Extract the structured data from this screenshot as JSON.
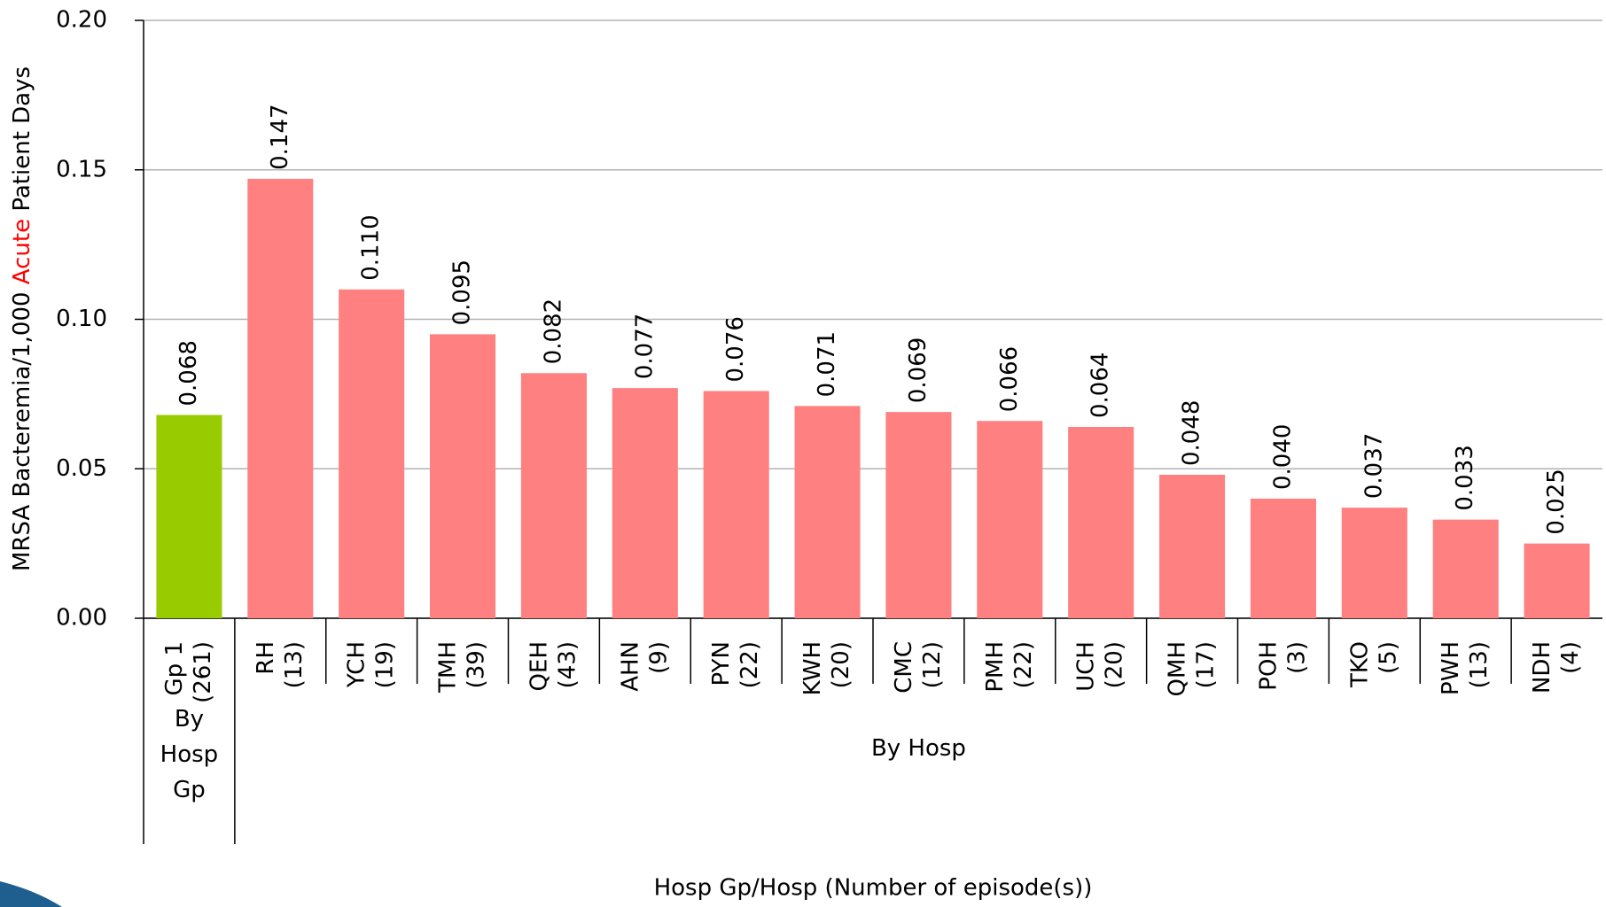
{
  "chart_data": {
    "type": "bar",
    "ylabel": [
      "MRSA Bacteremia/1,000 ",
      "Acute",
      " Patient Days"
    ],
    "xlabel": "Hosp Gp/Hosp (Number of episode(s))",
    "ylim": [
      0,
      0.2
    ],
    "yticks": [
      {
        "value": 0,
        "label": "0.00"
      },
      {
        "value": 0.05,
        "label": "0.05"
      },
      {
        "value": 0.1,
        "label": "0.10"
      },
      {
        "value": 0.15,
        "label": "0.15"
      },
      {
        "value": 0.2,
        "label": "0.20"
      }
    ],
    "grid": true,
    "groups": [
      {
        "label": "By Hosp Gp",
        "color": "#99cc00",
        "categories": [
          "Gp 1"
        ],
        "episodes": [
          "(261)"
        ],
        "values": [
          0.068
        ],
        "value_labels": [
          "0.068"
        ]
      },
      {
        "label": "By Hosp",
        "color": "#ff8080",
        "categories": [
          "RH",
          "YCH",
          "TMH",
          "QEH",
          "AHN",
          "PYN",
          "KWH",
          "CMC",
          "PMH",
          "UCH",
          "QMH",
          "POH",
          "TKO",
          "PWH",
          "NDH"
        ],
        "episodes": [
          "(13)",
          "(19)",
          "(39)",
          "(43)",
          "(9)",
          "(22)",
          "(20)",
          "(12)",
          "(22)",
          "(20)",
          "(17)",
          "(3)",
          "(5)",
          "(13)",
          "(4)"
        ],
        "values": [
          0.147,
          0.11,
          0.095,
          0.082,
          0.077,
          0.076,
          0.071,
          0.069,
          0.066,
          0.064,
          0.048,
          0.04,
          0.037,
          0.033,
          0.025
        ],
        "value_labels": [
          "0.147",
          "0.110",
          "0.095",
          "0.082",
          "0.077",
          "0.076",
          "0.071",
          "0.069",
          "0.066",
          "0.064",
          "0.048",
          "0.040",
          "0.037",
          "0.033",
          "0.025"
        ]
      }
    ]
  }
}
